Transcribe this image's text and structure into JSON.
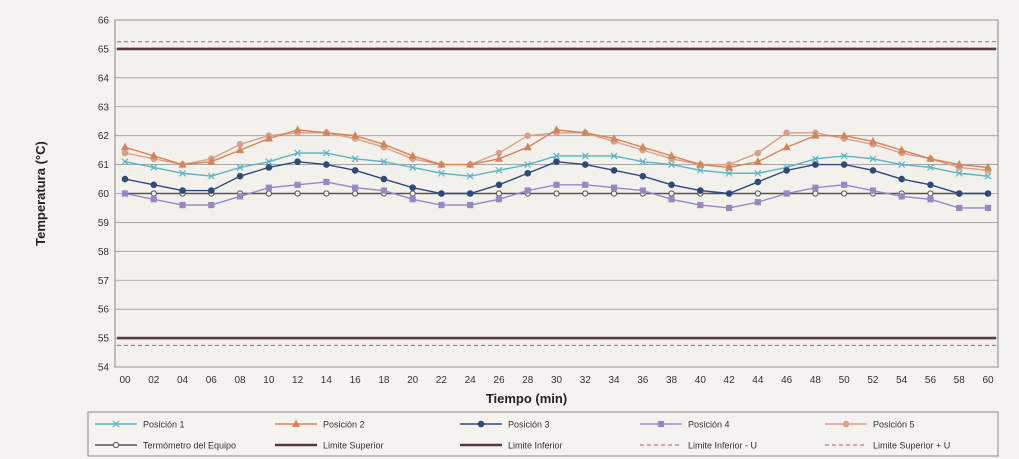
{
  "chart_data": {
    "type": "line",
    "xlabel": "Tiempo (min)",
    "ylabel": "Temperatura (°C)",
    "ylim": [
      54,
      66
    ],
    "yticks": [
      54,
      55,
      56,
      57,
      58,
      59,
      60,
      61,
      62,
      63,
      64,
      65,
      66
    ],
    "x": [
      "00",
      "02",
      "04",
      "06",
      "08",
      "10",
      "12",
      "14",
      "16",
      "18",
      "20",
      "22",
      "24",
      "26",
      "28",
      "30",
      "32",
      "34",
      "36",
      "38",
      "40",
      "42",
      "44",
      "46",
      "48",
      "50",
      "52",
      "54",
      "56",
      "58",
      "60"
    ],
    "grid": true,
    "legend_position": "bottom",
    "series": [
      {
        "name": "Posición 1",
        "color": "#5ab4c4",
        "marker": "x",
        "style": "solid",
        "values": [
          61.1,
          60.9,
          60.7,
          60.6,
          60.9,
          61.1,
          61.4,
          61.4,
          61.2,
          61.1,
          60.9,
          60.7,
          60.6,
          60.8,
          61.0,
          61.3,
          61.3,
          61.3,
          61.1,
          61.0,
          60.8,
          60.7,
          60.7,
          60.9,
          61.2,
          61.3,
          61.2,
          61.0,
          60.9,
          60.7,
          60.6
        ]
      },
      {
        "name": "Posición 2",
        "color": "#d4845a",
        "marker": "triangle",
        "style": "solid",
        "values": [
          61.6,
          61.3,
          61.0,
          61.1,
          61.5,
          61.9,
          62.2,
          62.1,
          62.0,
          61.7,
          61.3,
          61.0,
          61.0,
          61.2,
          61.6,
          62.2,
          62.1,
          61.9,
          61.6,
          61.3,
          61.0,
          60.9,
          61.1,
          61.6,
          62.0,
          62.0,
          61.8,
          61.5,
          61.2,
          61.0,
          60.9
        ]
      },
      {
        "name": "Posición 3",
        "color": "#2e4a7a",
        "marker": "circle",
        "style": "solid",
        "values": [
          60.5,
          60.3,
          60.1,
          60.1,
          60.6,
          60.9,
          61.1,
          61.0,
          60.8,
          60.5,
          60.2,
          60.0,
          60.0,
          60.3,
          60.7,
          61.1,
          61.0,
          60.8,
          60.6,
          60.3,
          60.1,
          60.0,
          60.4,
          60.8,
          61.0,
          61.0,
          60.8,
          60.5,
          60.3,
          60.0,
          60.0
        ]
      },
      {
        "name": "Posición 4",
        "color": "#9a86c4",
        "marker": "square",
        "style": "solid",
        "values": [
          60.0,
          59.8,
          59.6,
          59.6,
          59.9,
          60.2,
          60.3,
          60.4,
          60.2,
          60.1,
          59.8,
          59.6,
          59.6,
          59.8,
          60.1,
          60.3,
          60.3,
          60.2,
          60.1,
          59.8,
          59.6,
          59.5,
          59.7,
          60.0,
          60.2,
          60.3,
          60.1,
          59.9,
          59.8,
          59.5,
          59.5
        ]
      },
      {
        "name": "Posición 5",
        "color": "#d9a08a",
        "marker": "circle",
        "style": "solid",
        "values": [
          61.4,
          61.2,
          61.0,
          61.2,
          61.7,
          62.0,
          62.1,
          62.1,
          61.9,
          61.6,
          61.2,
          61.0,
          61.0,
          61.4,
          62.0,
          62.1,
          62.1,
          61.8,
          61.5,
          61.2,
          61.0,
          61.0,
          61.4,
          62.1,
          62.1,
          61.9,
          61.7,
          61.4,
          61.2,
          60.9,
          60.8
        ]
      },
      {
        "name": "Termómetro del Equipo",
        "color": "#555555",
        "marker": "circle-open",
        "style": "solid",
        "values": [
          60,
          60,
          60,
          60,
          60,
          60,
          60,
          60,
          60,
          60,
          60,
          60,
          60,
          60,
          60,
          60,
          60,
          60,
          60,
          60,
          60,
          60,
          60,
          60,
          60,
          60,
          60,
          60,
          60,
          60,
          60
        ]
      },
      {
        "name": "Limite Superior",
        "color": "#5a3a3a",
        "marker": "none",
        "style": "thick",
        "values": [
          65,
          65,
          65,
          65,
          65,
          65,
          65,
          65,
          65,
          65,
          65,
          65,
          65,
          65,
          65,
          65,
          65,
          65,
          65,
          65,
          65,
          65,
          65,
          65,
          65,
          65,
          65,
          65,
          65,
          65,
          65
        ]
      },
      {
        "name": "Limite Inferior",
        "color": "#5a3a3a",
        "marker": "none",
        "style": "thick",
        "values": [
          55,
          55,
          55,
          55,
          55,
          55,
          55,
          55,
          55,
          55,
          55,
          55,
          55,
          55,
          55,
          55,
          55,
          55,
          55,
          55,
          55,
          55,
          55,
          55,
          55,
          55,
          55,
          55,
          55,
          55,
          55
        ]
      },
      {
        "name": "Limite Inferior - U",
        "color": "#d95050",
        "marker": "none",
        "style": "dashed",
        "values": [
          54.75,
          54.75,
          54.75,
          54.75,
          54.75,
          54.75,
          54.75,
          54.75,
          54.75,
          54.75,
          54.75,
          54.75,
          54.75,
          54.75,
          54.75,
          54.75,
          54.75,
          54.75,
          54.75,
          54.75,
          54.75,
          54.75,
          54.75,
          54.75,
          54.75,
          54.75,
          54.75,
          54.75,
          54.75,
          54.75,
          54.75
        ]
      },
      {
        "name": "Limite Superior + U",
        "color": "#d95050",
        "marker": "none",
        "style": "dashed",
        "values": [
          65.25,
          65.25,
          65.25,
          65.25,
          65.25,
          65.25,
          65.25,
          65.25,
          65.25,
          65.25,
          65.25,
          65.25,
          65.25,
          65.25,
          65.25,
          65.25,
          65.25,
          65.25,
          65.25,
          65.25,
          65.25,
          65.25,
          65.25,
          65.25,
          65.25,
          65.25,
          65.25,
          65.25,
          65.25,
          65.25,
          65.25
        ]
      }
    ]
  }
}
